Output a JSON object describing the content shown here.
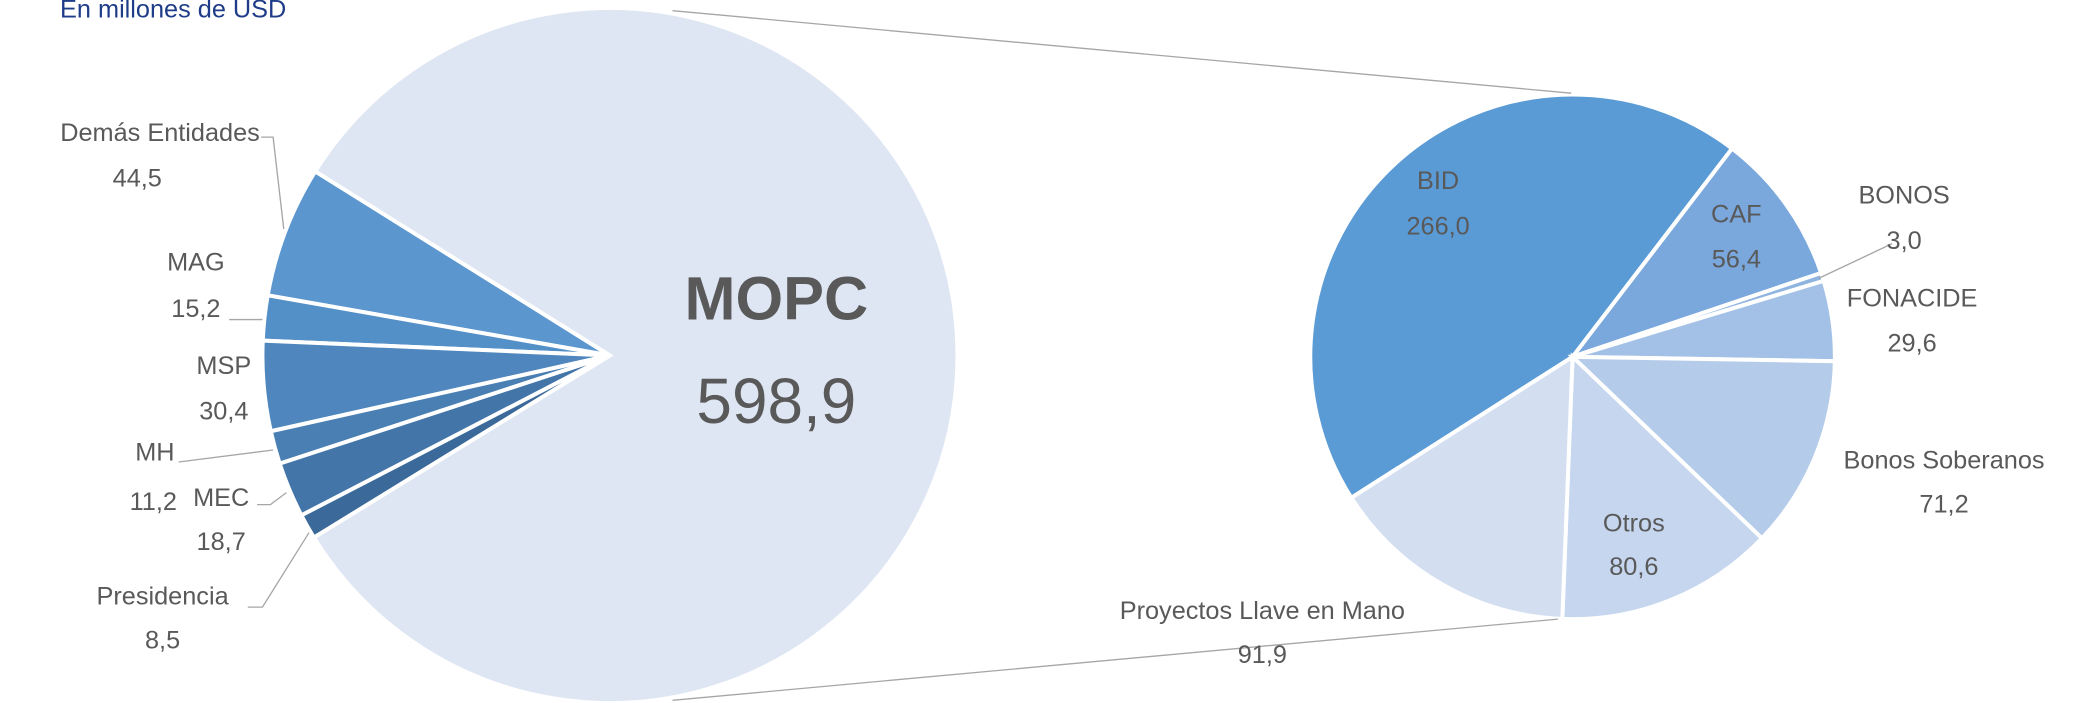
{
  "chart_data": [
    {
      "type": "pie",
      "subtitle": "En millones de USD",
      "categories": [
        "Demás Entidades",
        "MAG",
        "MSP",
        "MH",
        "MEC",
        "Presidencia",
        "MOPC"
      ],
      "values": [
        44.5,
        15.2,
        30.4,
        11.2,
        18.7,
        8.5,
        598.9
      ],
      "value_labels": [
        "44,5",
        "15,2",
        "30,4",
        "11,2",
        "18,7",
        "8,5",
        "598,9"
      ],
      "colors": [
        "#5b96cf",
        "#5490c8",
        "#4f86bd",
        "#4a7fb3",
        "#4375a8",
        "#3b6a9a",
        "#dfe6f3"
      ]
    },
    {
      "type": "pie",
      "categories": [
        "BID",
        "CAF",
        "BONOS",
        "FONACIDE",
        "Bonos Soberanos",
        "Otros",
        "Proyectos Llave en Mano"
      ],
      "values": [
        266.0,
        56.4,
        3.0,
        29.6,
        71.2,
        80.6,
        91.9
      ],
      "value_labels": [
        "266,0",
        "56,4",
        "3,0",
        "29,6",
        "71,2",
        "80,6",
        "91,9"
      ],
      "colors": [
        "#5b9bd5",
        "#7aa7dc",
        "#8fb4e0",
        "#a3c1e6",
        "#b4cbe9",
        "#c5d6ee",
        "#d3dff1"
      ]
    }
  ]
}
